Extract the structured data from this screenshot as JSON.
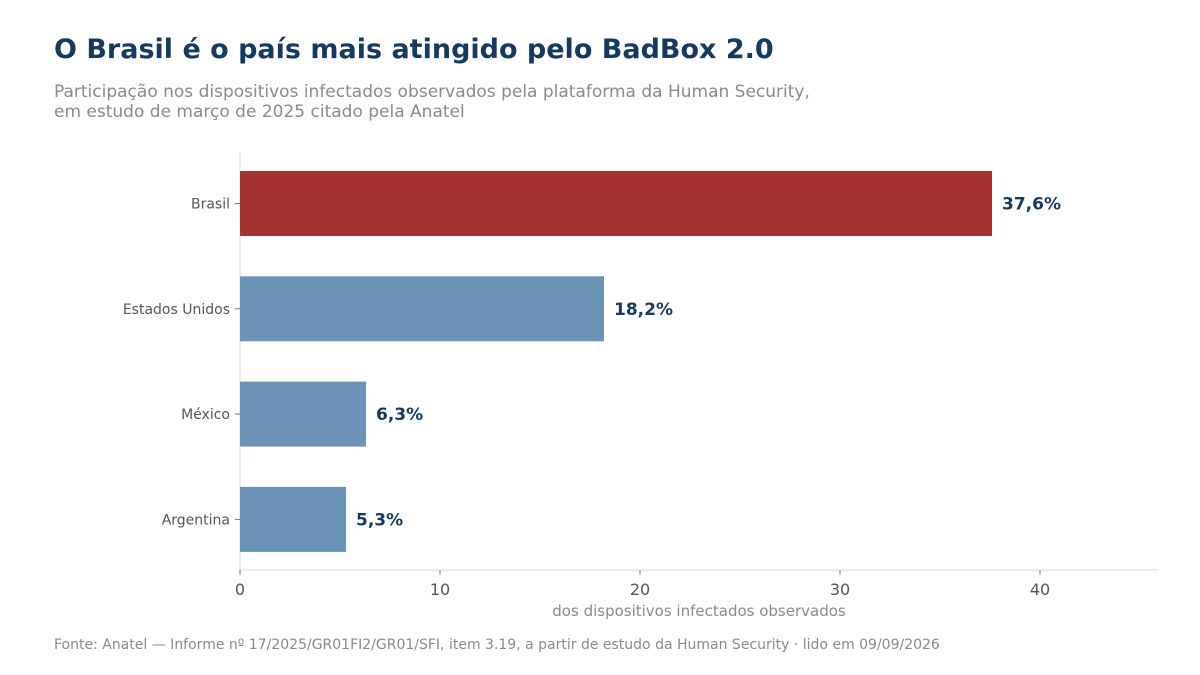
{
  "header": {
    "title": "O Brasil é o país mais atingido pelo BadBox 2.0",
    "subtitle_line1": "Participação nos dispositivos infectados observados pela plataforma da Human Security,",
    "subtitle_line2": "em estudo de março de 2025 citado pela Anatel"
  },
  "footer": {
    "source": "Fonte: Anatel — Informe nº 17/2025/GR01FI2/GR01/SFI, item 3.19, a partir de estudo da Human Security · lido em 09/09/2026"
  },
  "chart_data": {
    "type": "bar",
    "orientation": "horizontal",
    "title": "O Brasil é o país mais atingido pelo BadBox 2.0",
    "xlabel": "dos dispositivos infectados observados",
    "ylabel": "",
    "categories": [
      "Brasil",
      "Estados Unidos",
      "México",
      "Argentina"
    ],
    "values": [
      37.6,
      18.2,
      6.3,
      5.3
    ],
    "data_labels": [
      "37,6%",
      "18,2%",
      "6,3%",
      "5,3%"
    ],
    "xlim": [
      0,
      45.9
    ],
    "xticks": [
      0,
      10,
      20,
      30,
      40
    ],
    "grid": false,
    "colors": {
      "highlight": "#a63230",
      "default": "#6a93b7",
      "label": "#163a5f"
    },
    "highlight_index": 0
  }
}
